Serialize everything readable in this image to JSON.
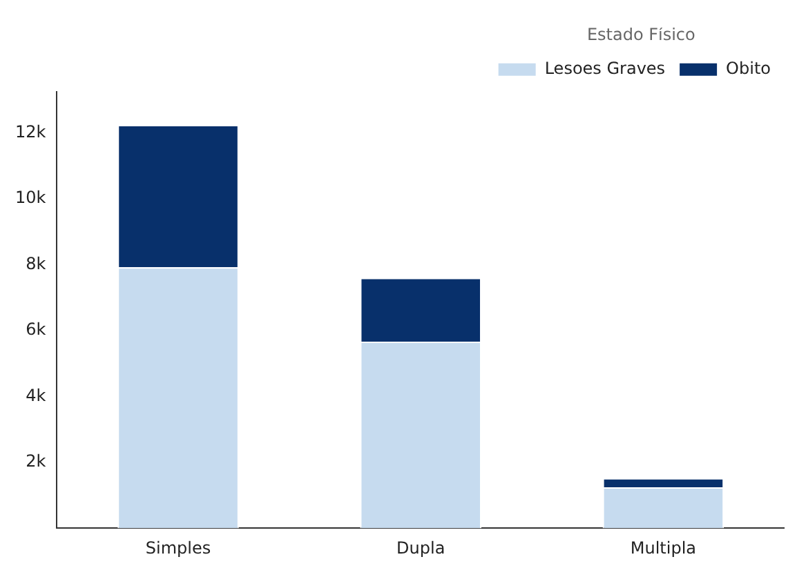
{
  "chart_data": {
    "type": "bar",
    "stacked": true,
    "categories": [
      "Simples",
      "Dupla",
      "Multipla"
    ],
    "series": [
      {
        "name": "Lesoes Graves",
        "color": "#c6dbef",
        "values": [
          7920,
          5660,
          1240
        ]
      },
      {
        "name": "Obito",
        "color": "#08306b",
        "values": [
          4320,
          1940,
          280
        ]
      }
    ],
    "legend_title": "Estado Físico",
    "legend": "top right",
    "grid": false,
    "ylim": [
      0,
      13250
    ],
    "yticks": [
      {
        "value": 2000,
        "label": "2k"
      },
      {
        "value": 4000,
        "label": "4k"
      },
      {
        "value": 6000,
        "label": "6k"
      },
      {
        "value": 8000,
        "label": "8k"
      },
      {
        "value": 10000,
        "label": "10k"
      },
      {
        "value": 12000,
        "label": "12k"
      }
    ]
  }
}
